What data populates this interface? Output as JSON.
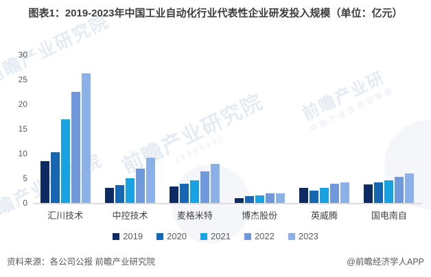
{
  "title": "图表1：2019-2023年中国工业自动化行业代表性企业研发投入规模（单位：亿元）",
  "footer": {
    "source": "资料来源：各公司公报 前瞻产业研究院",
    "brand": "@前瞻经济学人APP"
  },
  "watermark": {
    "text": "前瞻产业研究院",
    "code": "(839599)",
    "tagline": "中国产业咨询领导者"
  },
  "chart_data": {
    "type": "bar",
    "title": "2019-2023年中国工业自动化行业代表性企业研发投入规模",
    "unit": "亿元",
    "categories": [
      "汇川技术",
      "中控技术",
      "麦格米特",
      "博杰股份",
      "英威腾",
      "国电南自"
    ],
    "series": [
      {
        "name": "2019",
        "color": "#0e2a63",
        "values": [
          8.5,
          3.1,
          3.4,
          1.0,
          3.0,
          3.7
        ]
      },
      {
        "name": "2020",
        "color": "#1666b2",
        "values": [
          10.3,
          3.6,
          3.9,
          1.4,
          2.5,
          4.1
        ]
      },
      {
        "name": "2021",
        "color": "#18a2e2",
        "values": [
          16.9,
          5.0,
          4.6,
          1.5,
          3.1,
          4.6
        ]
      },
      {
        "name": "2022",
        "color": "#7099dc",
        "values": [
          22.5,
          6.9,
          6.4,
          1.9,
          3.9,
          5.3
        ]
      },
      {
        "name": "2023",
        "color": "#8cb1e8",
        "values": [
          26.3,
          9.2,
          7.9,
          1.9,
          4.2,
          6.0
        ]
      }
    ],
    "xlabel": "",
    "ylabel": "",
    "ylim": [
      0,
      30
    ],
    "yticks": [
      0,
      5,
      10,
      15,
      20,
      25,
      30
    ],
    "grid": false,
    "legend_position": "bottom"
  }
}
